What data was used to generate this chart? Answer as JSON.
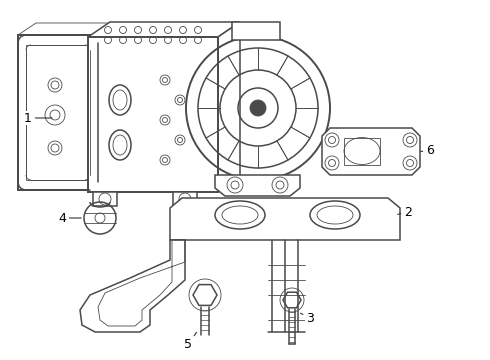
{
  "background_color": "#ffffff",
  "line_color": "#4a4a4a",
  "label_color": "#000000",
  "fig_width": 4.9,
  "fig_height": 3.6,
  "dpi": 100,
  "lw_main": 1.1,
  "lw_thin": 0.6,
  "lw_thick": 1.4
}
